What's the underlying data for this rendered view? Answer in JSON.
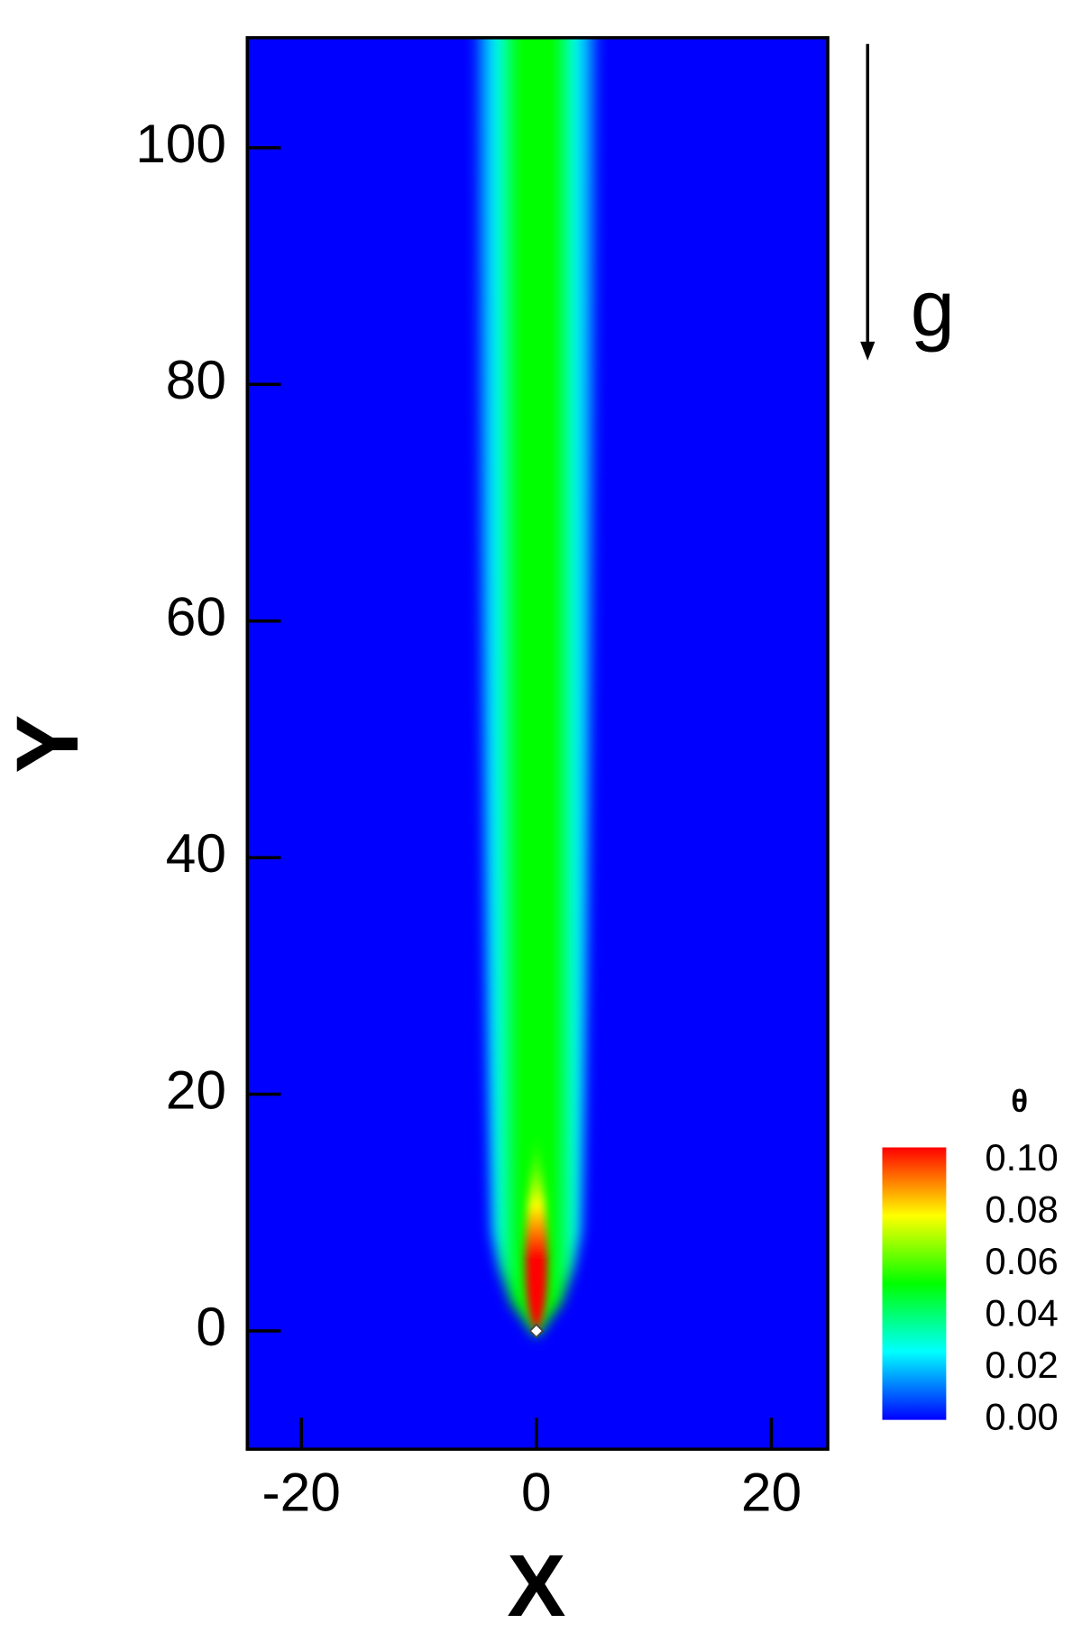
{
  "chart_data": {
    "type": "contour",
    "xlabel": "X",
    "ylabel": "Y",
    "xlim": [
      -24.6,
      24.8
    ],
    "ylim": [
      -10,
      109.3
    ],
    "xticks": [
      -20,
      0,
      20
    ],
    "yticks": [
      0,
      20,
      40,
      60,
      80,
      100
    ],
    "annotation": "g",
    "colorbar": {
      "title": "θ",
      "clim": [
        0,
        0.105
      ],
      "ticks": [
        {
          "value": 0,
          "label": "0.00"
        },
        {
          "value": 0.02,
          "label": "0.02"
        },
        {
          "value": 0.04,
          "label": "0.04"
        },
        {
          "value": 0.06,
          "label": "0.06"
        },
        {
          "value": 0.08,
          "label": "0.08"
        },
        {
          "value": 0.1,
          "label": "0.10"
        }
      ],
      "colormap": [
        "#0000ff",
        "#00ffff",
        "#00ff00",
        "#ffff00",
        "#ff0000"
      ]
    }
  }
}
